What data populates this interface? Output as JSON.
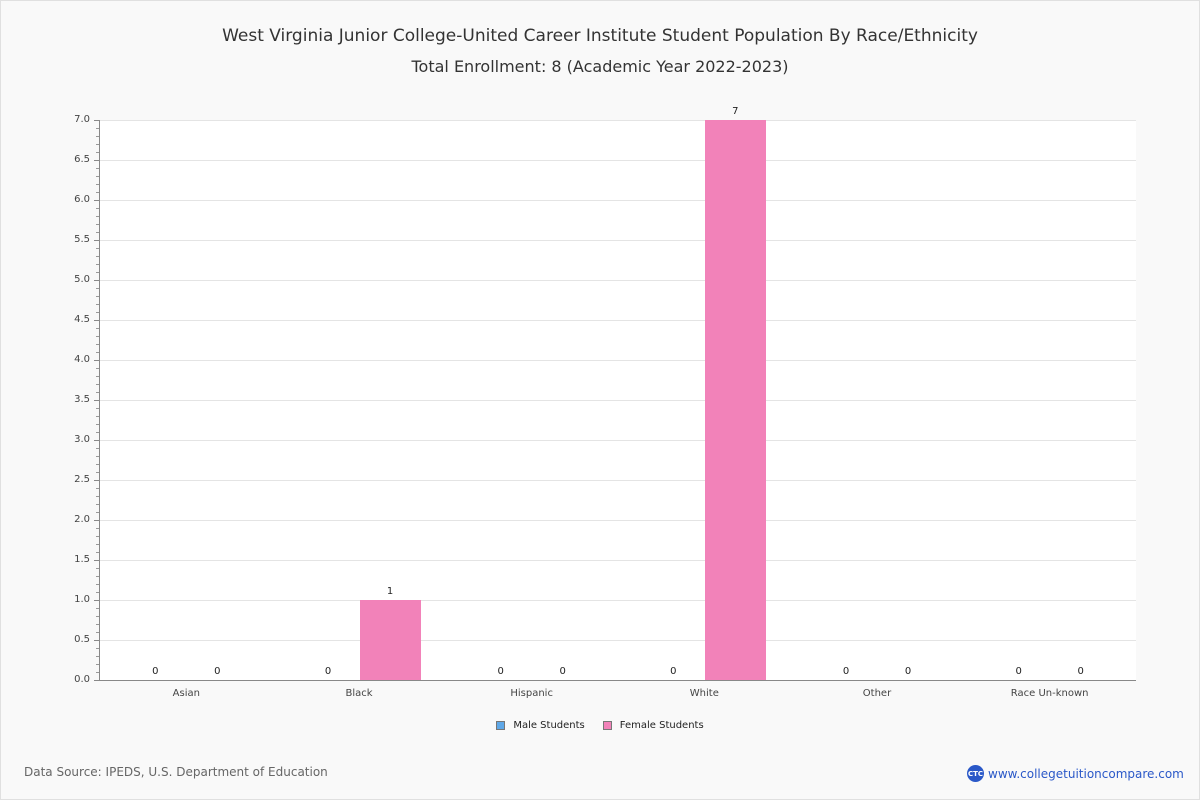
{
  "header": {
    "title": "West Virginia Junior College-United Career Institute Student Population By Race/Ethnicity",
    "subtitle": "Total Enrollment: 8 (Academic Year 2022-2023)"
  },
  "footer": {
    "source": "Data Source: IPEDS, U.S. Department of Education",
    "brand_logo": "CTC",
    "brand_url": "www.collegetuitioncompare.com"
  },
  "colors": {
    "male": "#5fa8e8",
    "female": "#f282b9",
    "brand": "#2a58c8"
  },
  "chart_data": {
    "type": "bar",
    "title": "West Virginia Junior College-United Career Institute Student Population By Race/Ethnicity",
    "subtitle": "Total Enrollment: 8 (Academic Year 2022-2023)",
    "xlabel": "",
    "ylabel": "",
    "categories": [
      "Asian",
      "Black",
      "Hispanic",
      "White",
      "Other",
      "Race Un-known"
    ],
    "series": [
      {
        "name": "Male Students",
        "values": [
          0,
          0,
          0,
          0,
          0,
          0
        ]
      },
      {
        "name": "Female Students",
        "values": [
          0,
          1,
          0,
          7,
          0,
          0
        ]
      }
    ],
    "ylim": [
      0,
      7
    ],
    "yticks": [
      "0.0",
      "0.5",
      "1.0",
      "1.5",
      "2.0",
      "2.5",
      "3.0",
      "3.5",
      "4.0",
      "4.5",
      "5.0",
      "5.5",
      "6.0",
      "6.5",
      "7.0"
    ],
    "grid": true,
    "legend_position": "bottom",
    "data_labels": true
  }
}
